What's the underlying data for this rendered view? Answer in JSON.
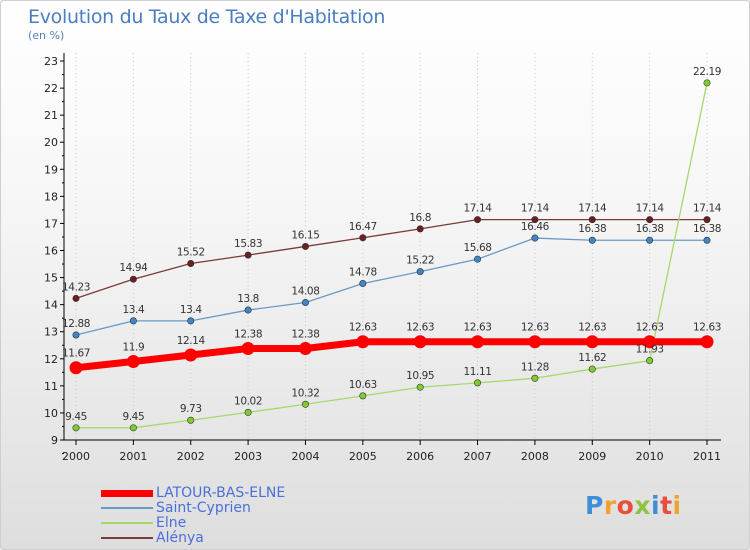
{
  "title": "Evolution du Taux de Taxe d'Habitation",
  "unit_label": "(en %)",
  "logo": {
    "text": "Proxiti",
    "letters": [
      {
        "ch": "P",
        "color": "#3f8fd6"
      },
      {
        "ch": "r",
        "color": "#f0a22e"
      },
      {
        "ch": "o",
        "color": "#e94e3c"
      },
      {
        "ch": "x",
        "color": "#8fc440"
      },
      {
        "ch": "i",
        "color": "#3f8fd6"
      },
      {
        "ch": "t",
        "color": "#e94e3c"
      },
      {
        "ch": "i",
        "color": "#f0a22e"
      }
    ]
  },
  "chart_data": {
    "type": "line",
    "title": "Evolution du Taux de Taxe d'Habitation",
    "ylabel": "(en %)",
    "xlabel": "",
    "x": [
      2000,
      2001,
      2002,
      2003,
      2004,
      2005,
      2006,
      2007,
      2008,
      2009,
      2010,
      2011
    ],
    "ylim": [
      9,
      23
    ],
    "yticks": [
      9,
      10,
      11,
      12,
      13,
      14,
      15,
      16,
      17,
      18,
      19,
      20,
      21,
      22,
      23
    ],
    "grid": "vertical dotted",
    "legend_position": "bottom-left",
    "series": [
      {
        "name": "LATOUR-BAS-ELNE",
        "color": "#ff0000",
        "line_width": 7,
        "values": [
          11.67,
          11.9,
          12.14,
          12.38,
          12.38,
          12.63,
          12.63,
          12.63,
          12.63,
          12.63,
          12.63,
          12.63
        ],
        "labels": [
          "11.67",
          "11.9",
          "12.14",
          "12.38",
          "12.38",
          "12.63",
          "12.63",
          "12.63",
          "12.63",
          "12.63",
          "12.63",
          "12.63"
        ]
      },
      {
        "name": "Saint-Cyprien",
        "color": "#6a9ac4",
        "marker_color": "#3f86c6",
        "line_width": 1.3,
        "values": [
          12.88,
          13.4,
          13.4,
          13.8,
          14.08,
          14.78,
          15.22,
          15.68,
          16.46,
          16.38,
          16.38,
          16.38
        ],
        "labels": [
          "12.88",
          "13.4",
          "13.4",
          "13.8",
          "14.08",
          "14.78",
          "15.22",
          "15.68",
          "16.46",
          "16.38",
          "16.38",
          "16.38"
        ]
      },
      {
        "name": "Elne",
        "color": "#a6d96a",
        "marker_color": "#7fcc2e",
        "line_width": 1.3,
        "values": [
          9.45,
          9.45,
          9.73,
          10.02,
          10.32,
          10.63,
          10.95,
          11.11,
          11.28,
          11.62,
          11.93,
          22.19
        ],
        "labels": [
          "9.45",
          "9.45",
          "9.73",
          "10.02",
          "10.32",
          "10.63",
          "10.95",
          "11.11",
          "11.28",
          "11.62",
          "11.93",
          "22.19"
        ]
      },
      {
        "name": "Alénya",
        "color": "#7a3b3b",
        "marker_color": "#6b1f1f",
        "line_width": 1.3,
        "values": [
          14.23,
          14.94,
          15.52,
          15.83,
          16.15,
          16.47,
          16.8,
          17.14,
          17.14,
          17.14,
          17.14,
          17.14
        ],
        "labels": [
          "14.23",
          "14.94",
          "15.52",
          "15.83",
          "16.15",
          "16.47",
          "16.8",
          "17.14",
          "17.14",
          "17.14",
          "17.14",
          "17.14"
        ]
      }
    ]
  }
}
